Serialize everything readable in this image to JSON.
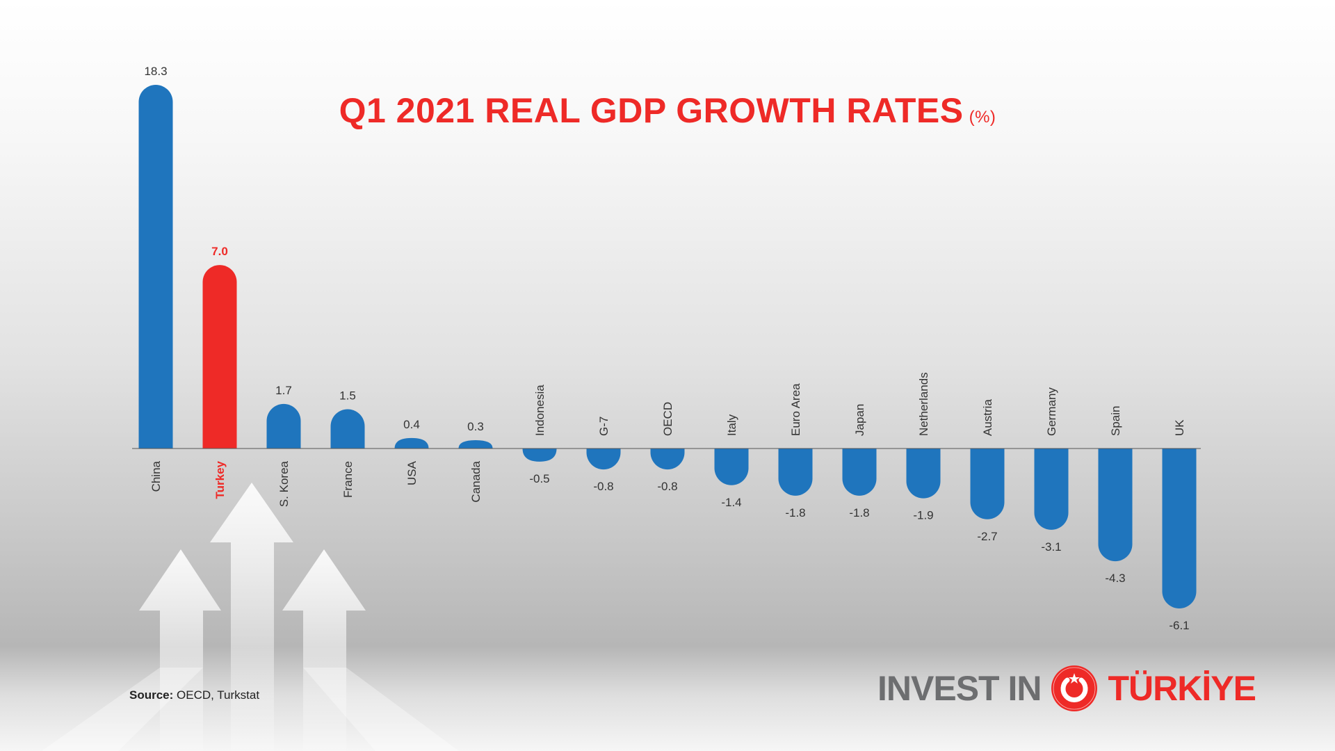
{
  "title": "Q1 2021 REAL GDP GROWTH RATES",
  "title_unit": "(%)",
  "source_label": "Source:",
  "source_text": "OECD, Turkstat",
  "logo": {
    "left": "INVEST IN",
    "right": "TÜRKİYE"
  },
  "colors": {
    "bar": "#1f75bd",
    "highlight": "#ee2a27",
    "title": "#ee2a27",
    "logo_gray": "#6d6e70"
  },
  "chart_data": {
    "type": "bar",
    "title": "Q1 2021 REAL GDP GROWTH RATES (%)",
    "categories": [
      "China",
      "Turkey",
      "S. Korea",
      "France",
      "USA",
      "Canada",
      "Indonesia",
      "G-7",
      "OECD",
      "Italy",
      "Euro Area",
      "Japan",
      "Netherlands",
      "Austria",
      "Germany",
      "Spain",
      "UK"
    ],
    "values": [
      18.3,
      7.0,
      1.7,
      1.5,
      0.4,
      0.3,
      -0.5,
      -0.8,
      -0.8,
      -1.4,
      -1.8,
      -1.8,
      -1.9,
      -2.7,
      -3.1,
      -4.3,
      -6.1
    ],
    "value_labels": [
      "18.3",
      "7.0",
      "1.7",
      "1.5",
      "0.4",
      "0.3",
      "-0.5",
      "-0.8",
      "-0.8",
      "-1.4",
      "-1.8",
      "-1.8",
      "-1.9",
      "-2.7",
      "-3.1",
      "-4.3",
      "-6.1"
    ],
    "highlight": "Turkey",
    "xlabel": "",
    "ylabel": "",
    "grid": false,
    "legend": "none"
  }
}
